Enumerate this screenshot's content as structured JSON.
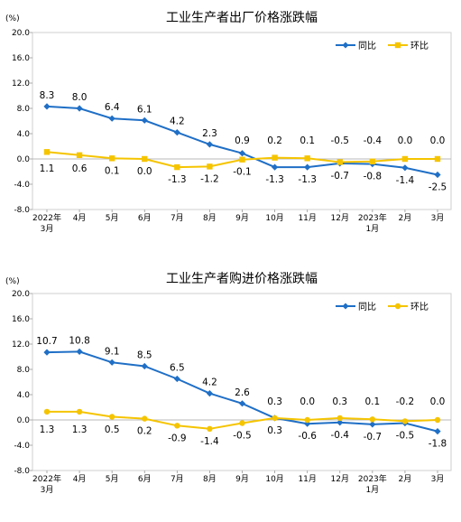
{
  "chart_data": [
    {
      "type": "line",
      "title": "工业生产者出厂价格涨跌幅",
      "yunit": "(%)",
      "ylim": [
        -8.0,
        20.0
      ],
      "yticks": [
        "20.0",
        "16.0",
        "12.0",
        "8.0",
        "4.0",
        "0.0",
        "-4.0",
        "-8.0"
      ],
      "categories": [
        [
          "2022年",
          "3月"
        ],
        [
          "4月"
        ],
        [
          "5月"
        ],
        [
          "6月"
        ],
        [
          "7月"
        ],
        [
          "8月"
        ],
        [
          "9月"
        ],
        [
          "10月"
        ],
        [
          "11月"
        ],
        [
          "12月"
        ],
        [
          "2023年",
          "1月"
        ],
        [
          "2月"
        ],
        [
          "3月"
        ]
      ],
      "legend_position": "top-right",
      "series": [
        {
          "name": "同比",
          "color": "#1f6fc6",
          "marker": "diamond",
          "values": [
            8.3,
            8.0,
            6.4,
            6.1,
            4.2,
            2.3,
            0.9,
            -1.3,
            -1.3,
            -0.7,
            -0.8,
            -1.4,
            -2.5
          ]
        },
        {
          "name": "环比",
          "color": "#f5c400",
          "marker": "square",
          "values": [
            1.1,
            0.6,
            0.1,
            0.0,
            -1.3,
            -1.2,
            -0.1,
            0.2,
            0.1,
            -0.5,
            -0.4,
            0.0,
            0.0
          ]
        }
      ],
      "top_labels": [
        "8.3",
        "8.0",
        "6.4",
        "6.1",
        "4.2",
        "2.3",
        "0.9",
        "0.2",
        "0.1",
        "-0.5",
        "-0.4",
        "0.0",
        "0.0"
      ],
      "bottom_labels": [
        "1.1",
        "0.6",
        "0.1",
        "0.0",
        "-1.3",
        "-1.2",
        "-0.1",
        "-1.3",
        "-1.3",
        "-0.7",
        "-0.8",
        "-1.4",
        "-2.5"
      ]
    },
    {
      "type": "line",
      "title": "工业生产者购进价格涨跌幅",
      "yunit": "(%)",
      "ylim": [
        -8.0,
        20.0
      ],
      "yticks": [
        "20.0",
        "16.0",
        "12.0",
        "8.0",
        "4.0",
        "0.0",
        "-4.0",
        "-8.0"
      ],
      "categories": [
        [
          "2022年",
          "3月"
        ],
        [
          "4月"
        ],
        [
          "5月"
        ],
        [
          "6月"
        ],
        [
          "7月"
        ],
        [
          "8月"
        ],
        [
          "9月"
        ],
        [
          "10月"
        ],
        [
          "11月"
        ],
        [
          "12月"
        ],
        [
          "2023年",
          "1月"
        ],
        [
          "2月"
        ],
        [
          "3月"
        ]
      ],
      "legend_position": "top-right",
      "series": [
        {
          "name": "同比",
          "color": "#1f6fc6",
          "marker": "diamond",
          "values": [
            10.7,
            10.8,
            9.1,
            8.5,
            6.5,
            4.2,
            2.6,
            0.3,
            -0.6,
            -0.4,
            -0.7,
            -0.5,
            -1.8
          ]
        },
        {
          "name": "环比",
          "color": "#f5c400",
          "marker": "circle",
          "values": [
            1.3,
            1.3,
            0.5,
            0.2,
            -0.9,
            -1.4,
            -0.5,
            0.3,
            0.0,
            0.3,
            0.1,
            -0.2,
            0.0
          ]
        }
      ],
      "top_labels": [
        "10.7",
        "10.8",
        "9.1",
        "8.5",
        "6.5",
        "4.2",
        "2.6",
        "0.3",
        "0.0",
        "0.3",
        "0.1",
        "-0.2",
        "0.0"
      ],
      "bottom_labels": [
        "1.3",
        "1.3",
        "0.5",
        "0.2",
        "-0.9",
        "-1.4",
        "-0.5",
        "0.3",
        "-0.6",
        "-0.4",
        "-0.7",
        "-0.5",
        "-1.8"
      ]
    }
  ]
}
